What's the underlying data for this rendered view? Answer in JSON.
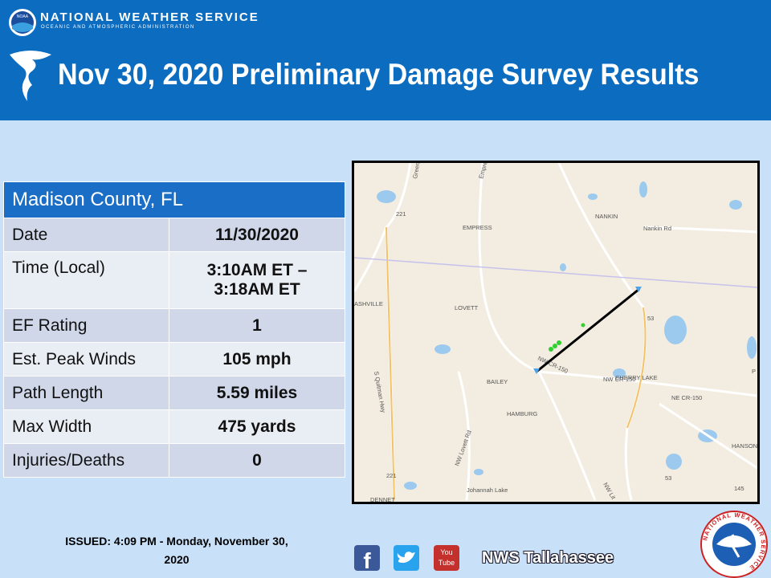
{
  "header": {
    "agency": "NATIONAL WEATHER SERVICE",
    "agency_sub": "OCEANIC AND ATMOSPHERIC ADMINISTRATION",
    "noaa_badge": "NOAA",
    "title": "Nov 30, 2020 Preliminary Damage Survey Results"
  },
  "table": {
    "title": "Madison County, FL",
    "rows": [
      {
        "label": "Date",
        "value": [
          "11/30/2020"
        ]
      },
      {
        "label": "Time (Local)",
        "value": [
          "3:10AM ET –",
          "3:18AM ET"
        ]
      },
      {
        "label": "EF Rating",
        "value": [
          "1"
        ]
      },
      {
        "label": "Est. Peak Winds",
        "value": [
          "105 mph"
        ]
      },
      {
        "label": "Path Length",
        "value": [
          "5.59 miles"
        ]
      },
      {
        "label": "Max Width",
        "value": [
          "475 yards"
        ]
      },
      {
        "label": "Injuries/Deaths",
        "value": [
          "0"
        ]
      }
    ]
  },
  "map": {
    "labels": [
      "Greenville",
      "Empress",
      "221",
      "EMPRESS",
      "NANKIN",
      "Nankin Rd",
      "ASHVILLE",
      "LOVETT",
      "53",
      "BAILEY",
      "NW CR-150",
      "NW CR-150",
      "CHERRY LAKE",
      "NE CR-150",
      "HAMBURG",
      "S Quitman Hwy",
      "NW Lovett Rd",
      "Johannah Lake",
      "NW Lit",
      "221",
      "53",
      "145",
      "HANSON",
      "DENNET",
      "P"
    ]
  },
  "footer": {
    "issued": [
      "ISSUED: 4:09 PM - Monday, November 30,",
      "2020"
    ],
    "icons": [
      "f",
      "You",
      "Tube"
    ],
    "office": "NWS Tallahassee",
    "logo_text": "NATIONAL WEATHER SERVICE"
  }
}
